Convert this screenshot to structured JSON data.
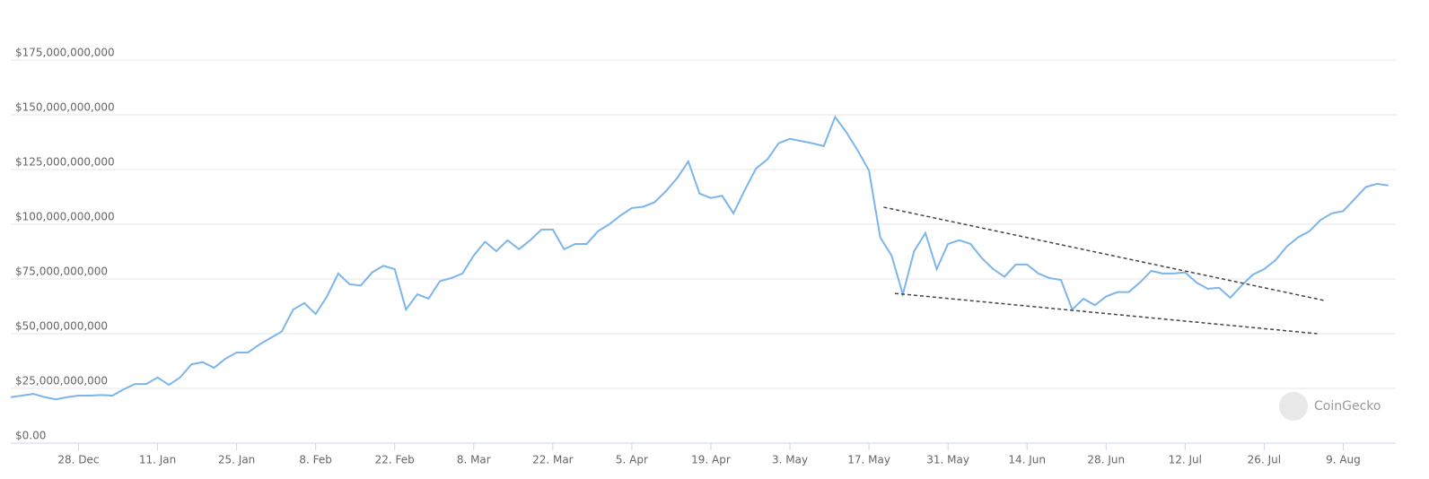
{
  "chart_data": {
    "type": "line",
    "categories": [
      null,
      null,
      null,
      null,
      null,
      null,
      "28. Dec",
      null,
      null,
      null,
      null,
      null,
      null,
      "11. Jan",
      null,
      null,
      null,
      null,
      null,
      null,
      "25. Jan",
      null,
      null,
      null,
      null,
      null,
      null,
      "8. Feb",
      null,
      null,
      null,
      null,
      null,
      null,
      "22. Feb",
      null,
      null,
      null,
      null,
      null,
      null,
      "8. Mar",
      null,
      null,
      null,
      null,
      null,
      null,
      "22. Mar",
      null,
      null,
      null,
      null,
      null,
      null,
      "5. Apr",
      null,
      null,
      null,
      null,
      null,
      null,
      "19. Apr",
      null,
      null,
      null,
      null,
      null,
      null,
      "3. May",
      null,
      null,
      null,
      null,
      null,
      null,
      "17. May",
      null,
      null,
      null,
      null,
      null,
      null,
      "31. May",
      null,
      null,
      null,
      null,
      null,
      null,
      "14. Jun",
      null,
      null,
      null,
      null,
      null,
      null,
      "28. Jun",
      null,
      null,
      null,
      null,
      null,
      null,
      "12. Jul",
      null,
      null,
      null,
      null,
      null,
      null,
      "26. Jul",
      null,
      null,
      null,
      null,
      null,
      null,
      "9. Aug",
      null,
      null,
      null,
      null
    ],
    "series": [
      {
        "color": "#7cb5ec",
        "values": [
          21000000000.0,
          21700000000.0,
          22500000000.0,
          21000000000.0,
          20000000000.0,
          21000000000.0,
          21700000000.0,
          21700000000.0,
          22000000000.0,
          21700000000.0,
          24600000000.0,
          27000000000.0,
          27000000000.0,
          30000000000.0,
          26600000000.0,
          30000000000.0,
          36000000000.0,
          37000000000.0,
          34400000000.0,
          38500000000.0,
          41400000000.0,
          41400000000.0,
          45000000000.0,
          48000000000.0,
          51000000000.0,
          61000000000.0,
          64000000000.0,
          59000000000.0,
          67000000000.0,
          77500000000.0,
          72600000000.0,
          72000000000.0,
          78000000000.0,
          81000000000.0,
          79500000000.0,
          61000000000.0,
          68000000000.0,
          66000000000.0,
          74000000000.0,
          75400000000.0,
          77500000000.0,
          85700000000.0,
          92000000000.0,
          87700000000.0,
          92700000000.0,
          88600000000.0,
          92700000000.0,
          97600000000.0,
          97600000000.0,
          88600000000.0,
          91000000000.0,
          91000000000.0,
          96800000000.0,
          100000000000.0,
          104000000000.0,
          107400000000.0,
          108000000000.0,
          110000000000.0,
          115000000000.0,
          121000000000.0,
          128700000000.0,
          114000000000.0,
          112000000000.0,
          113000000000.0,
          105000000000.0,
          115600000000.0,
          125500000000.0,
          129600000000.0,
          137000000000.0,
          139000000000.0,
          138000000000.0,
          137000000000.0,
          135700000000.0,
          149000000000.0,
          142000000000.0,
          133700000000.0,
          124600000000.0,
          94000000000.0,
          85700000000.0,
          68000000000.0,
          87700000000.0,
          96000000000.0,
          79500000000.0,
          91000000000.0,
          92700000000.0,
          91000000000.0,
          84500000000.0,
          79500000000.0,
          76000000000.0,
          81600000000.0,
          81600000000.0,
          77500000000.0,
          75400000000.0,
          74600000000.0,
          61000000000.0,
          66000000000.0,
          63000000000.0,
          67000000000.0,
          69000000000.0,
          69000000000.0,
          73400000000.0,
          78700000000.0,
          77500000000.0,
          77500000000.0,
          78000000000.0,
          73400000000.0,
          70500000000.0,
          71000000000.0,
          66400000000.0,
          72000000000.0,
          77000000000.0,
          79500000000.0,
          83600000000.0,
          89800000000.0,
          94000000000.0,
          96800000000.0,
          102000000000.0,
          105000000000.0,
          106000000000.0,
          111500000000.0,
          117000000000.0,
          118500000000.0,
          117700000000.0
        ]
      }
    ],
    "trend_lines": [
      {
        "x": [
          77.3,
          116.3
        ],
        "values": [
          107800000000.0,
          65200000000.0
        ]
      },
      {
        "x": [
          78.3,
          115.7
        ],
        "values": [
          68400000000.0,
          50000000000.0
        ]
      }
    ],
    "ylim": [
      0,
      175000000000.0
    ],
    "yticks": [
      {
        "value": 0,
        "label": "$0.00"
      },
      {
        "value": 25000000000.0,
        "label": "$25,000,000,000"
      },
      {
        "value": 50000000000.0,
        "label": "$50,000,000,000"
      },
      {
        "value": 75000000000.0,
        "label": "$75,000,000,000"
      },
      {
        "value": 100000000000.0,
        "label": "$100,000,000,000"
      },
      {
        "value": 125000000000.0,
        "label": "$125,000,000,000"
      },
      {
        "value": 150000000000.0,
        "label": "$150,000,000,000"
      },
      {
        "value": 175000000000.0,
        "label": "$175,000,000,000"
      }
    ],
    "grid": true,
    "watermark": "CoinGecko"
  }
}
